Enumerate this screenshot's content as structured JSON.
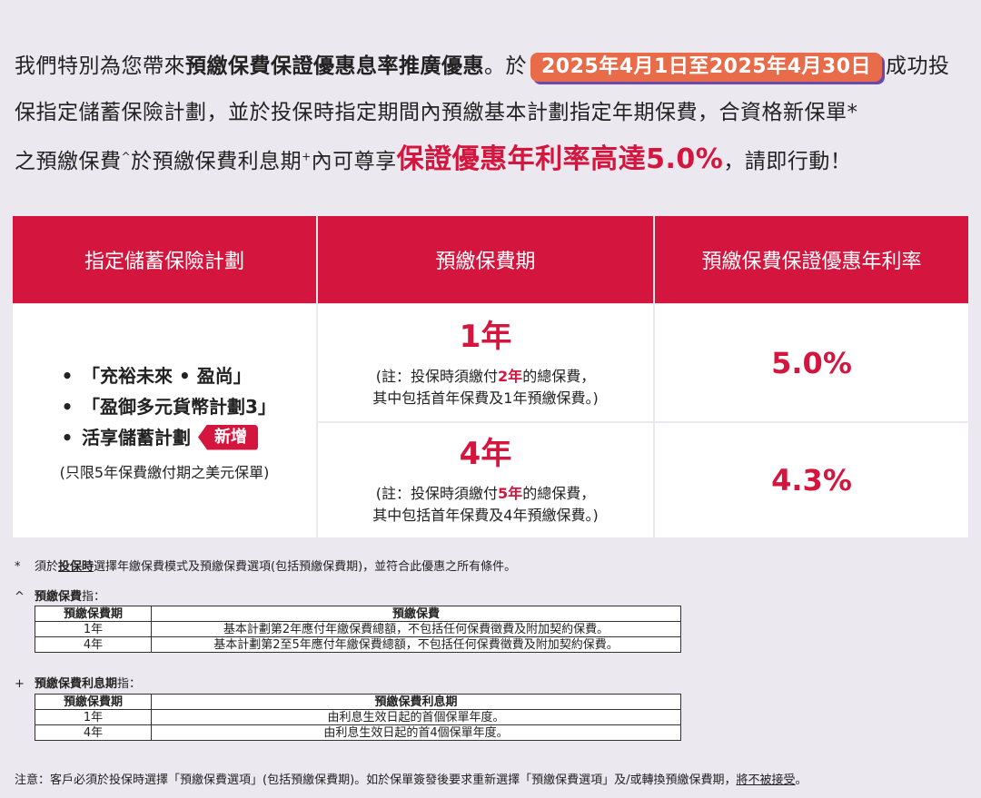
{
  "intro": {
    "p1": "我們特別為您帶來",
    "offer_name": "預繳保費保證優惠息率推廣優惠",
    "p2": "。於",
    "date_range": "2025年4月1日至2025年4月30日",
    "p3": "成功投保指定儲蓄保險計劃，並於投保時指定期間內預繳基本計劃指定年期保費，合資格新保單",
    "mark_star": "*",
    "p4": "之預繳保費",
    "mark_caret": "^",
    "p5": "於預繳保費利息期",
    "mark_plus": "+",
    "p6": "內可尊享",
    "highlight": "保證優惠年利率高達5.0%",
    "p7": "，請即行動！"
  },
  "table": {
    "headers": [
      "指定儲蓄保險計劃",
      "預繳保費期",
      "預繳保費保證優惠年利率"
    ],
    "plans": [
      "「充裕未來 • 盈尚」",
      "「盈御多元貨幣計劃3」",
      "活享儲蓄計劃"
    ],
    "bullet": "•",
    "new_tag": "新增",
    "plan_note": "(只限5年保費繳付期之美元保單)",
    "rows": [
      {
        "period": "1年",
        "note_a": "(註：投保時須繳付",
        "note_em": "2年",
        "note_b": "的總保費，",
        "note_line2": "其中包括首年保費及1年預繳保費。)",
        "rate": "5.0%"
      },
      {
        "period": "4年",
        "note_a": "(註：投保時須繳付",
        "note_em": "5年",
        "note_b": "的總保費，",
        "note_line2": "其中包括首年保費及4年預繳保費。)",
        "rate": "4.3%"
      }
    ]
  },
  "footnotes": {
    "star_mark": "*",
    "star_a": "須於",
    "star_ul": "投保時",
    "star_b": "選擇年繳保費模式及預繳保費選項(包括預繳保費期)，並符合此優惠之所有條件。",
    "caret_mark": "^",
    "caret_term": "預繳保費",
    "caret_suffix": "指：",
    "caret_table": {
      "headers": [
        "預繳保費期",
        "預繳保費"
      ],
      "rows": [
        [
          "1年",
          "基本計劃第2年應付年繳保費總額，不包括任何保費徵費及附加契約保費。"
        ],
        [
          "4年",
          "基本計劃第2至5年應付年繳保費總額，不包括任何保費徵費及附加契約保費。"
        ]
      ]
    },
    "plus_mark": "+",
    "plus_term": "預繳保費利息期",
    "plus_suffix": "指：",
    "plus_table": {
      "headers": [
        "預繳保費期",
        "預繳保費利息期"
      ],
      "rows": [
        [
          "1年",
          "由利息生效日起的首個保單年度。"
        ],
        [
          "4年",
          "由利息生效日起的首4個保單年度。"
        ]
      ]
    },
    "note_a": "注意：客戶必須於投保時選擇「預繳保費選項」(包括預繳保費期)。如於保單簽發後要求重新選擇「預繳保費選項」及/或轉換預繳保費期，",
    "note_ul": "將不被接受",
    "note_b": "。"
  }
}
